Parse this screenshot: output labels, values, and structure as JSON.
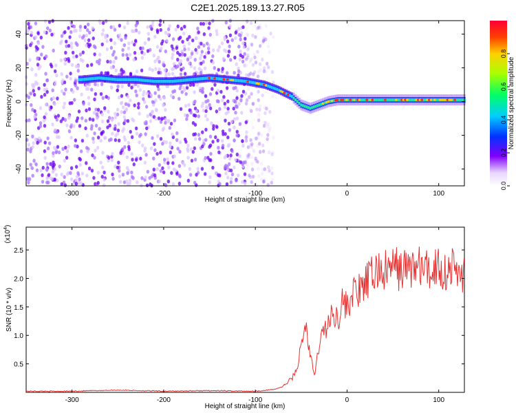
{
  "title": "C2E1.2025.189.13.27.R05",
  "chart_data": [
    {
      "type": "heatmap",
      "xlabel": "Height of straight line (km)",
      "ylabel": "Frequency (Hz)",
      "xlim": [
        -350,
        128
      ],
      "ylim": [
        -50,
        48
      ],
      "xticks": [
        -300,
        -200,
        -100,
        0,
        100
      ],
      "yticks": [
        -40,
        -20,
        0,
        20,
        40
      ],
      "colorbar": {
        "label": "Normalized spectral amplitude",
        "range": [
          0,
          1
        ],
        "ticks": [
          "0.0",
          "0.2",
          "0.4",
          "0.6",
          "0.8"
        ]
      },
      "ridge": {
        "description_points_x": [
          -290,
          -270,
          -250,
          -230,
          -210,
          -190,
          -170,
          -150,
          -130,
          -110,
          -90,
          -75,
          -60,
          -50,
          -40,
          -30,
          -20,
          -10,
          0,
          20,
          50,
          80,
          110,
          128
        ],
        "frequency_hz": [
          13,
          14,
          13,
          13,
          12,
          12,
          13,
          14,
          13,
          12,
          10,
          7,
          3,
          -2,
          -4,
          -2,
          0,
          1,
          1,
          1,
          1,
          1,
          1,
          1
        ]
      }
    },
    {
      "type": "line",
      "xlabel": "Height of straight line (km)",
      "ylabel": "SNR (10 * v/v)",
      "multiplier": "(x10",
      "multiplier_exp": "4",
      "multiplier_close": ")",
      "xlim": [
        -350,
        128
      ],
      "ylim": [
        0,
        2.9
      ],
      "xticks": [
        -300,
        -200,
        -100,
        0,
        100
      ],
      "yticks": [
        "0.5",
        "1.0",
        "1.5",
        "2.0",
        "2.5"
      ],
      "series": [
        {
          "color": "#e53030",
          "x": [
            -350,
            -300,
            -250,
            -200,
            -150,
            -100,
            -80,
            -70,
            -60,
            -55,
            -50,
            -45,
            -40,
            -35,
            -30,
            -25,
            -20,
            -15,
            -10,
            -5,
            0,
            5,
            10,
            15,
            20,
            25,
            30,
            35,
            40,
            50,
            60,
            70,
            80,
            90,
            95,
            100,
            105,
            110,
            115,
            120,
            128
          ],
          "y": [
            0.02,
            0.02,
            0.04,
            0.02,
            0.03,
            0.02,
            0.05,
            0.1,
            0.25,
            0.4,
            0.8,
            1.2,
            0.6,
            0.3,
            0.9,
            1.1,
            1.2,
            1.4,
            1.3,
            1.6,
            1.5,
            1.7,
            1.8,
            1.75,
            1.9,
            2.0,
            2.1,
            2.15,
            2.1,
            2.2,
            2.15,
            2.2,
            2.2,
            2.1,
            2.2,
            2.25,
            2.1,
            2.15,
            2.2,
            2.1,
            2.1
          ]
        }
      ]
    }
  ]
}
